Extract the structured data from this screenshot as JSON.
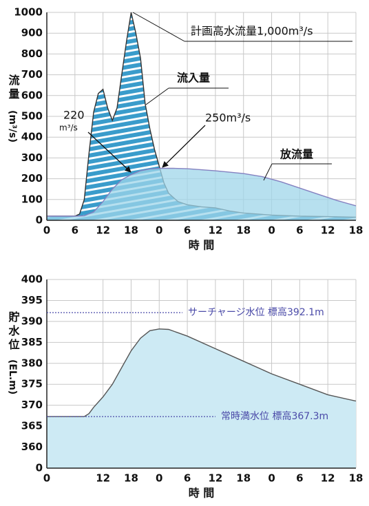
{
  "chart_data": [
    {
      "type": "area",
      "ylabel": "流量",
      "ylabel_unit": "(m³/s)",
      "xlabel": "時 間",
      "series": [
        {
          "name": "流入量",
          "color": "#3a9ccb",
          "line_color": "#333333",
          "pattern": "stripes",
          "x": [
            0,
            6,
            7,
            8,
            9,
            10,
            11,
            12,
            13,
            14,
            15,
            16,
            17,
            18,
            19,
            20,
            21,
            22,
            23,
            24,
            25,
            26,
            28,
            30,
            33,
            36,
            39,
            42,
            48,
            54,
            60,
            66
          ],
          "values": [
            20,
            20,
            30,
            100,
            320,
            520,
            610,
            630,
            540,
            480,
            540,
            700,
            860,
            1000,
            900,
            780,
            560,
            440,
            340,
            260,
            180,
            130,
            90,
            75,
            65,
            60,
            45,
            35,
            25,
            20,
            18,
            15
          ]
        },
        {
          "name": "放流量",
          "color": "#9fd6ea",
          "line_color": "#8480c0",
          "x": [
            0,
            6,
            8,
            10,
            12,
            14,
            16,
            18,
            20,
            22,
            24,
            27,
            30,
            36,
            42,
            46,
            50,
            54,
            58,
            62,
            66
          ],
          "values": [
            20,
            20,
            22,
            40,
            90,
            150,
            195,
            220,
            238,
            247,
            250,
            250,
            248,
            238,
            225,
            210,
            185,
            155,
            125,
            95,
            70
          ]
        }
      ],
      "xlim": [
        0,
        66
      ],
      "xticks": [
        0,
        6,
        12,
        18,
        {
          "value": 24,
          "label": "0"
        },
        {
          "value": 30,
          "label": "6"
        },
        {
          "value": 36,
          "label": "12"
        },
        {
          "value": 42,
          "label": "18"
        },
        {
          "value": 48,
          "label": "0"
        },
        {
          "value": 54,
          "label": "6"
        },
        {
          "value": 60,
          "label": "12"
        },
        {
          "value": 66,
          "label": "18"
        }
      ],
      "ylim": [
        0,
        1000
      ],
      "yticks": [
        0,
        100,
        200,
        300,
        400,
        500,
        600,
        700,
        800,
        900,
        1000
      ],
      "grid": true,
      "annotations": [
        "計画高水流量1,000m³/s",
        "220",
        "m³/s",
        "250m³/s"
      ]
    },
    {
      "type": "area",
      "ylabel": "貯水位",
      "ylabel_unit": "(EL.m)",
      "xlabel": "時 間",
      "series": [
        {
          "color": "#cdeaf4",
          "line_color": "#555555",
          "x": [
            0,
            6,
            8,
            9,
            10,
            12,
            14,
            16,
            18,
            20,
            22,
            24,
            26,
            28,
            30,
            36,
            42,
            48,
            54,
            60,
            66
          ],
          "values": [
            367.3,
            367.3,
            367.3,
            368,
            369.5,
            372,
            375,
            379,
            383,
            386,
            387.8,
            388.2,
            388.1,
            387.3,
            386.5,
            383.5,
            380.5,
            377.5,
            375,
            372.5,
            371
          ]
        }
      ],
      "xlim": [
        0,
        66
      ],
      "xticks": [
        0,
        12,
        18,
        {
          "value": 24,
          "label": "0"
        },
        {
          "value": 30,
          "label": "6"
        },
        {
          "value": 36,
          "label": "12"
        },
        {
          "value": 42,
          "label": "18"
        },
        {
          "value": 48,
          "label": "0"
        },
        {
          "value": 54,
          "label": "6"
        },
        {
          "value": 60,
          "label": "12"
        },
        {
          "value": 66,
          "label": "18"
        }
      ],
      "ylim": [
        0,
        400
      ],
      "yticks": [
        0,
        360,
        365,
        370,
        375,
        380,
        385,
        390,
        395,
        400
      ],
      "axis_break": true,
      "grid": true,
      "reference_lines": [
        {
          "value": 392.1,
          "label": "サーチャージ水位 標高392.1m",
          "color": "#4a4aa8"
        },
        {
          "value": 367.3,
          "label": "常時満水位 標高367.3m",
          "color": "#4a4aa8"
        }
      ]
    }
  ]
}
